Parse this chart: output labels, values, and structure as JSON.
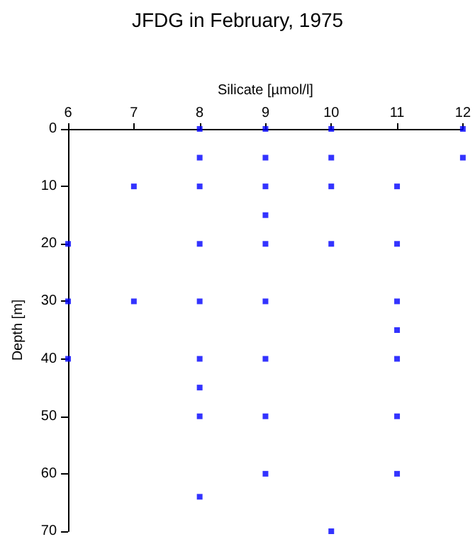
{
  "chart_data": {
    "type": "scatter",
    "title": "JFDG in February, 1975",
    "xlabel": "Silicate [µmol/l]",
    "ylabel": "Depth [m]",
    "x": [
      8,
      9,
      10,
      12,
      8,
      9,
      10,
      12,
      7,
      8,
      9,
      10,
      11,
      9,
      6,
      8,
      9,
      10,
      11,
      6,
      7,
      8,
      9,
      11,
      11,
      6,
      8,
      9,
      11,
      8,
      8,
      9,
      11,
      9,
      11,
      8,
      10
    ],
    "values": [
      0,
      0,
      0,
      0,
      5,
      5,
      5,
      5,
      10,
      10,
      10,
      10,
      10,
      15,
      20,
      20,
      20,
      20,
      20,
      30,
      30,
      30,
      30,
      30,
      35,
      40,
      40,
      40,
      40,
      45,
      50,
      50,
      50,
      60,
      60,
      64,
      70
    ],
    "color": "#0000ff",
    "marker": "square",
    "xlim": [
      6,
      12
    ],
    "xticks": [
      6,
      7,
      8,
      9,
      10,
      11,
      12
    ],
    "ylim": [
      70,
      0
    ],
    "yticks": [
      0,
      10,
      20,
      30,
      40,
      50,
      60,
      70
    ],
    "grid": false
  }
}
